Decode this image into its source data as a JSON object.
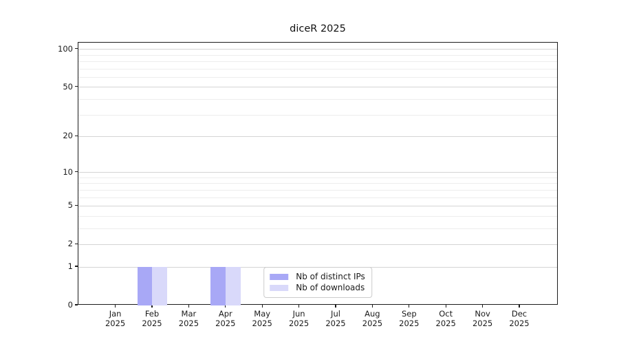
{
  "chart_data": {
    "type": "bar",
    "title": "diceR 2025",
    "categories": [
      "Jan",
      "Feb",
      "Mar",
      "Apr",
      "May",
      "Jun",
      "Jul",
      "Aug",
      "Sep",
      "Oct",
      "Nov",
      "Dec"
    ],
    "x_year_label": "2025",
    "series": [
      {
        "name": "Nb of distinct IPs",
        "color": "#a8a8f6",
        "values": [
          0,
          1,
          0,
          1,
          0,
          0,
          0,
          0,
          0,
          0,
          0,
          0
        ]
      },
      {
        "name": "Nb of downloads",
        "color": "#d9d9fa",
        "values": [
          0,
          1,
          0,
          1,
          0,
          0,
          0,
          0,
          0,
          0,
          0,
          0
        ]
      }
    ],
    "y_ticks": [
      100,
      50,
      20,
      10,
      5,
      2,
      1,
      0
    ],
    "y_minor_ticks": [
      3,
      4,
      6,
      7,
      8,
      9,
      30,
      40,
      60,
      70,
      80,
      90
    ],
    "y_scale": "log1p",
    "ylim": [
      0,
      113
    ],
    "grid": true,
    "legend_position": "lower center"
  },
  "colors": {
    "major_grid": "#d4d4d4",
    "minor_grid": "#ededed",
    "axis": "#1a1a1a",
    "legend_border": "#cccccc"
  }
}
